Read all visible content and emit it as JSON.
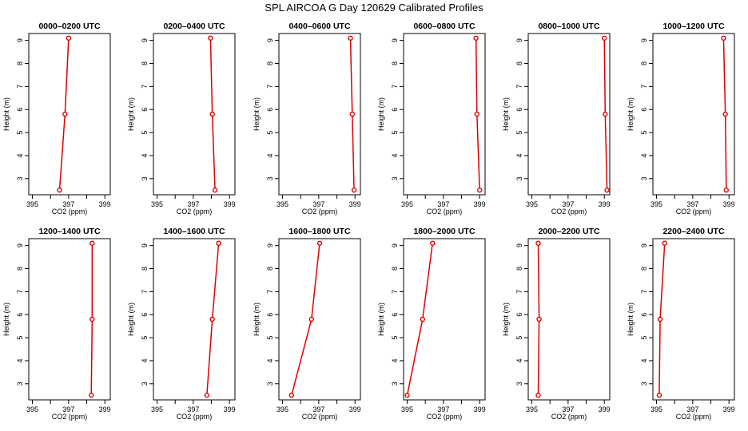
{
  "figure_title": "SPL AIRCOA G  Day 120629  Calibrated Profiles",
  "colors": {
    "series": "#dd0000",
    "axis": "#000000"
  },
  "chart_data": [
    {
      "type": "line",
      "title": "0000–0200 UTC",
      "xlabel": "CO2 (ppm)",
      "ylabel": "Height (m)",
      "xlim": [
        394.8,
        399.3
      ],
      "ylim": [
        2.3,
        9.3
      ],
      "xticks": [
        395,
        396,
        397,
        398,
        399
      ],
      "xtick_labels": [
        "395",
        "",
        "397",
        "",
        "399"
      ],
      "yticks": [
        3,
        4,
        5,
        6,
        7,
        8,
        9
      ],
      "x": [
        396.5,
        396.8,
        397.0
      ],
      "y": [
        2.5,
        5.8,
        9.1
      ]
    },
    {
      "type": "line",
      "title": "0200–0400 UTC",
      "xlabel": "CO2 (ppm)",
      "ylabel": "Height (m)",
      "xlim": [
        394.8,
        399.3
      ],
      "ylim": [
        2.3,
        9.3
      ],
      "xticks": [
        395,
        396,
        397,
        398,
        399
      ],
      "xtick_labels": [
        "395",
        "",
        "397",
        "",
        "399"
      ],
      "yticks": [
        3,
        4,
        5,
        6,
        7,
        8,
        9
      ],
      "x": [
        398.2,
        398.05,
        397.95
      ],
      "y": [
        2.5,
        5.8,
        9.1
      ]
    },
    {
      "type": "line",
      "title": "0400–0600 UTC",
      "xlabel": "CO2 (ppm)",
      "ylabel": "Height (m)",
      "xlim": [
        394.8,
        399.3
      ],
      "ylim": [
        2.3,
        9.3
      ],
      "xticks": [
        395,
        396,
        397,
        398,
        399
      ],
      "xtick_labels": [
        "395",
        "",
        "397",
        "",
        "399"
      ],
      "yticks": [
        3,
        4,
        5,
        6,
        7,
        8,
        9
      ],
      "x": [
        398.95,
        398.85,
        398.75
      ],
      "y": [
        2.5,
        5.8,
        9.1
      ]
    },
    {
      "type": "line",
      "title": "0600–0800 UTC",
      "xlabel": "CO2 (ppm)",
      "ylabel": "Height (m)",
      "xlim": [
        394.8,
        399.3
      ],
      "ylim": [
        2.3,
        9.3
      ],
      "xticks": [
        395,
        396,
        397,
        398,
        399
      ],
      "xtick_labels": [
        "395",
        "",
        "397",
        "",
        "399"
      ],
      "yticks": [
        3,
        4,
        5,
        6,
        7,
        8,
        9
      ],
      "x": [
        399.0,
        398.85,
        398.8
      ],
      "y": [
        2.5,
        5.8,
        9.1
      ]
    },
    {
      "type": "line",
      "title": "0800–1000 UTC",
      "xlabel": "CO2 (ppm)",
      "ylabel": "Height (m)",
      "xlim": [
        394.8,
        399.3
      ],
      "ylim": [
        2.3,
        9.3
      ],
      "xticks": [
        395,
        396,
        397,
        398,
        399
      ],
      "xtick_labels": [
        "395",
        "",
        "397",
        "",
        "399"
      ],
      "yticks": [
        3,
        4,
        5,
        6,
        7,
        8,
        9
      ],
      "x": [
        399.15,
        399.05,
        399.0
      ],
      "y": [
        2.5,
        5.8,
        9.1
      ]
    },
    {
      "type": "line",
      "title": "1000–1200 UTC",
      "xlabel": "CO2 (ppm)",
      "ylabel": "Height (m)",
      "xlim": [
        394.8,
        399.3
      ],
      "ylim": [
        2.3,
        9.3
      ],
      "xticks": [
        395,
        396,
        397,
        398,
        399
      ],
      "xtick_labels": [
        "395",
        "",
        "397",
        "",
        "399"
      ],
      "yticks": [
        3,
        4,
        5,
        6,
        7,
        8,
        9
      ],
      "x": [
        398.85,
        398.8,
        398.7
      ],
      "y": [
        2.5,
        5.8,
        9.1
      ]
    },
    {
      "type": "line",
      "title": "1200–1400 UTC",
      "xlabel": "CO2 (ppm)",
      "ylabel": "Height (m)",
      "xlim": [
        394.8,
        399.3
      ],
      "ylim": [
        2.3,
        9.3
      ],
      "xticks": [
        395,
        396,
        397,
        398,
        399
      ],
      "xtick_labels": [
        "395",
        "",
        "397",
        "",
        "399"
      ],
      "yticks": [
        3,
        4,
        5,
        6,
        7,
        8,
        9
      ],
      "x": [
        398.25,
        398.3,
        398.3
      ],
      "y": [
        2.5,
        5.8,
        9.1
      ]
    },
    {
      "type": "line",
      "title": "1400–1600 UTC",
      "xlabel": "CO2 (ppm)",
      "ylabel": "Height (m)",
      "xlim": [
        394.8,
        399.3
      ],
      "ylim": [
        2.3,
        9.3
      ],
      "xticks": [
        395,
        396,
        397,
        398,
        399
      ],
      "xtick_labels": [
        "395",
        "",
        "397",
        "",
        "399"
      ],
      "yticks": [
        3,
        4,
        5,
        6,
        7,
        8,
        9
      ],
      "x": [
        397.75,
        398.05,
        398.4
      ],
      "y": [
        2.5,
        5.8,
        9.1
      ]
    },
    {
      "type": "line",
      "title": "1600–1800 UTC",
      "xlabel": "CO2 (ppm)",
      "ylabel": "Height (m)",
      "xlim": [
        394.8,
        399.3
      ],
      "ylim": [
        2.3,
        9.3
      ],
      "xticks": [
        395,
        396,
        397,
        398,
        399
      ],
      "xtick_labels": [
        "395",
        "",
        "397",
        "",
        "399"
      ],
      "yticks": [
        3,
        4,
        5,
        6,
        7,
        8,
        9
      ],
      "x": [
        395.5,
        396.6,
        397.05
      ],
      "y": [
        2.5,
        5.8,
        9.1
      ]
    },
    {
      "type": "line",
      "title": "1800–2000 UTC",
      "xlabel": "CO2 (ppm)",
      "ylabel": "Height (m)",
      "xlim": [
        394.8,
        399.3
      ],
      "ylim": [
        2.3,
        9.3
      ],
      "xticks": [
        395,
        396,
        397,
        398,
        399
      ],
      "xtick_labels": [
        "395",
        "",
        "397",
        "",
        "399"
      ],
      "yticks": [
        3,
        4,
        5,
        6,
        7,
        8,
        9
      ],
      "x": [
        395.0,
        395.85,
        396.4
      ],
      "y": [
        2.5,
        5.8,
        9.1
      ]
    },
    {
      "type": "line",
      "title": "2000–2200 UTC",
      "xlabel": "CO2 (ppm)",
      "ylabel": "Height (m)",
      "xlim": [
        394.8,
        399.3
      ],
      "ylim": [
        2.3,
        9.3
      ],
      "xticks": [
        395,
        396,
        397,
        398,
        399
      ],
      "xtick_labels": [
        "395",
        "",
        "397",
        "",
        "399"
      ],
      "yticks": [
        3,
        4,
        5,
        6,
        7,
        8,
        9
      ],
      "x": [
        395.35,
        395.4,
        395.35
      ],
      "y": [
        2.5,
        5.8,
        9.1
      ]
    },
    {
      "type": "line",
      "title": "2200–2400 UTC",
      "xlabel": "CO2 (ppm)",
      "ylabel": "Height (m)",
      "xlim": [
        394.8,
        399.3
      ],
      "ylim": [
        2.3,
        9.3
      ],
      "xticks": [
        395,
        396,
        397,
        398,
        399
      ],
      "xtick_labels": [
        "395",
        "",
        "397",
        "",
        "399"
      ],
      "yticks": [
        3,
        4,
        5,
        6,
        7,
        8,
        9
      ],
      "x": [
        395.15,
        395.2,
        395.45
      ],
      "y": [
        2.5,
        5.8,
        9.1
      ]
    }
  ]
}
